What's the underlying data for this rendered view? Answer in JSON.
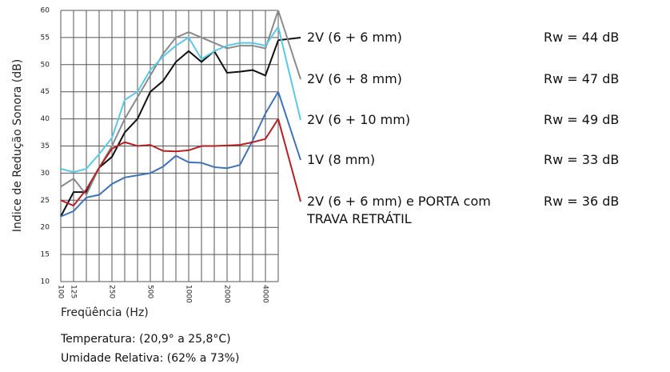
{
  "chart_data": {
    "type": "line",
    "ylabel": "Indice de Redução Sonora (dB)",
    "xlabel": "Freqüência (Hz)",
    "notes": [
      "Temperatura: (20,9° a  25,8°C)",
      "Umidade Relativa: (62% a 73%)"
    ],
    "categories": [
      "100",
      "125",
      null,
      null,
      "250",
      null,
      null,
      "500",
      null,
      null,
      "1000",
      null,
      null,
      "2000",
      null,
      null,
      "4000",
      null
    ],
    "ylim": [
      10,
      60
    ],
    "yticks": [
      10,
      15,
      20,
      25,
      30,
      35,
      40,
      45,
      50,
      55,
      60
    ],
    "grid": true,
    "series": [
      {
        "name": "2V (6 + 6 mm)",
        "label": "Rw = 44 dB",
        "color": "#111111",
        "values": [
          22,
          26.5,
          26.5,
          31,
          33,
          37.5,
          40,
          45,
          47,
          50.5,
          52.5,
          50.5,
          52.5,
          48.5,
          48.7,
          49,
          48,
          54.5
        ]
      },
      {
        "name": "2V (6 + 8 mm)",
        "label": "Rw = 47 dB",
        "color": "#8a8a8a",
        "values": [
          27.5,
          29,
          26,
          31,
          35,
          40,
          44,
          48,
          52,
          55,
          56,
          55,
          54,
          53,
          53.5,
          53.5,
          53,
          60
        ]
      },
      {
        "name": "2V (6 + 10 mm)",
        "label": "Rw = 49 dB",
        "color": "#5bc8e6",
        "values": [
          30.8,
          30.2,
          30.8,
          33.5,
          36.5,
          43.5,
          45,
          49,
          51.5,
          53.5,
          55,
          51,
          52.5,
          53.5,
          54,
          54,
          53.5,
          57
        ]
      },
      {
        "name": "1V (8 mm)",
        "label": "Rw = 33 dB",
        "color": "#3f73b8",
        "values": [
          22,
          23,
          25.5,
          26,
          28,
          29.2,
          29.6,
          30,
          31.2,
          33.2,
          32,
          31.9,
          31.1,
          30.9,
          31.5,
          36,
          41,
          45
        ]
      },
      {
        "name": "2V (6 + 6 mm) e PORTA com TRAVA RETRÁTIL",
        "label": "Rw = 36 dB",
        "color": "#b52025",
        "values": [
          25,
          24,
          27,
          31,
          34.5,
          35.7,
          35,
          35.2,
          34.1,
          34,
          34.2,
          35,
          35,
          35.1,
          35.2,
          35.7,
          36.3,
          40
        ]
      }
    ]
  }
}
